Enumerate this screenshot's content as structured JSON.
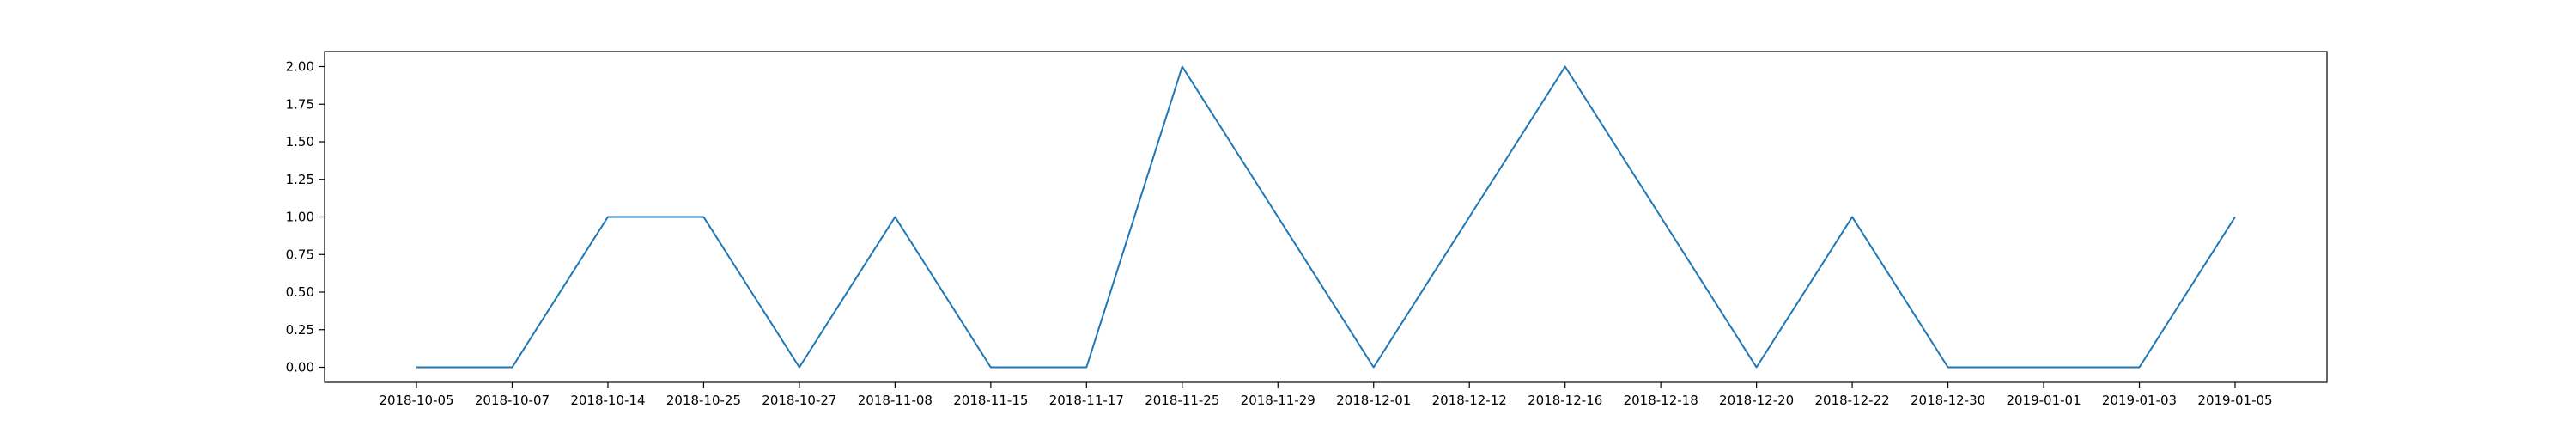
{
  "chart_data": {
    "type": "line",
    "title": "",
    "xlabel": "",
    "ylabel": "",
    "x_axis_type": "categorical",
    "categories": [
      "2018-10-05",
      "2018-10-07",
      "2018-10-14",
      "2018-10-25",
      "2018-10-27",
      "2018-11-08",
      "2018-11-15",
      "2018-11-17",
      "2018-11-25",
      "2018-11-29",
      "2018-12-01",
      "2018-12-12",
      "2018-12-16",
      "2018-12-18",
      "2018-12-20",
      "2018-12-22",
      "2018-12-30",
      "2019-01-01",
      "2019-01-03",
      "2019-01-05"
    ],
    "series": [
      {
        "color": "#1f77b4",
        "values": [
          0,
          0,
          1,
          1,
          0,
          1,
          0,
          0,
          2,
          1,
          0,
          1,
          2,
          1,
          0,
          1,
          0,
          0,
          0,
          1
        ]
      }
    ],
    "ylim": [
      -0.1,
      2.1
    ],
    "yticks": [
      0.0,
      0.25,
      0.5,
      0.75,
      1.0,
      1.25,
      1.5,
      1.75,
      2.0
    ],
    "ytick_labels": [
      "0.00",
      "0.25",
      "0.50",
      "0.75",
      "1.00",
      "1.25",
      "1.50",
      "1.75",
      "2.00"
    ],
    "grid": false,
    "legend": "none"
  }
}
